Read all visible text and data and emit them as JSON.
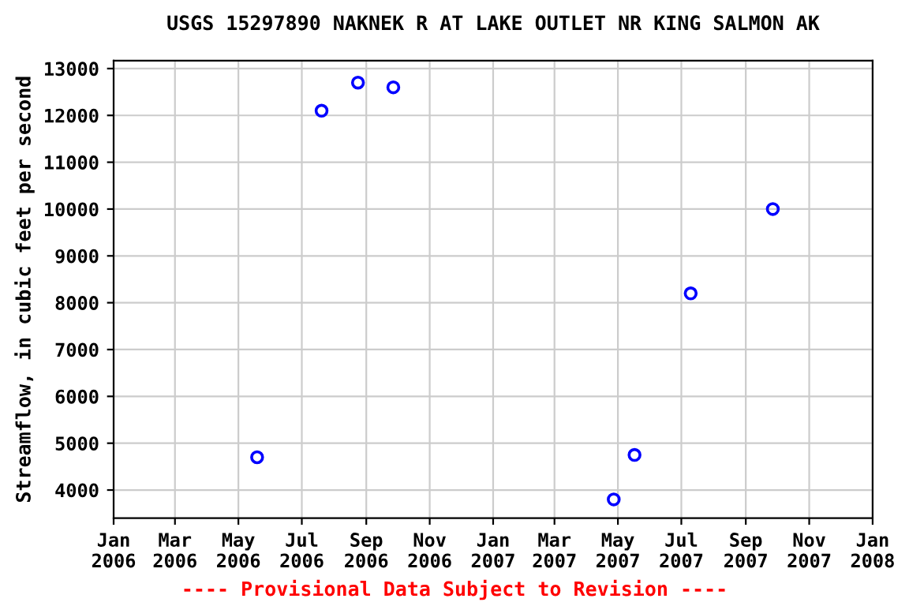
{
  "chart_data": {
    "type": "scatter",
    "title": "USGS 15297890 NAKNEK R AT LAKE OUTLET NR KING SALMON AK",
    "ylabel": "Streamflow, in cubic feet per second",
    "x": [
      "2006-05-19",
      "2006-07-20",
      "2006-08-24",
      "2006-09-27",
      "2007-04-27",
      "2007-05-17",
      "2007-07-10",
      "2007-09-27"
    ],
    "series": [
      {
        "color": "#0000ff",
        "values": [
          4700,
          12100,
          12700,
          12600,
          3800,
          4750,
          8200,
          10000
        ]
      }
    ],
    "marker": "circle",
    "grid": true,
    "xlim": [
      "2006-01-01",
      "2008-01-01"
    ],
    "xticks": [
      {
        "value": "2006-01-01",
        "label": "Jan\n2006"
      },
      {
        "value": "2006-03-01",
        "label": "Mar\n2006"
      },
      {
        "value": "2006-05-01",
        "label": "May\n2006"
      },
      {
        "value": "2006-07-01",
        "label": "Jul\n2006"
      },
      {
        "value": "2006-09-01",
        "label": "Sep\n2006"
      },
      {
        "value": "2006-11-01",
        "label": "Nov\n2006"
      },
      {
        "value": "2007-01-01",
        "label": "Jan\n2007"
      },
      {
        "value": "2007-03-01",
        "label": "Mar\n2007"
      },
      {
        "value": "2007-05-01",
        "label": "May\n2007"
      },
      {
        "value": "2007-07-01",
        "label": "Jul\n2007"
      },
      {
        "value": "2007-09-01",
        "label": "Sep\n2007"
      },
      {
        "value": "2007-11-01",
        "label": "Nov\n2007"
      },
      {
        "value": "2008-01-01",
        "label": "Jan\n2008"
      }
    ],
    "ylim": [
      3400,
      13170
    ],
    "yticks": [
      4000,
      5000,
      6000,
      7000,
      8000,
      9000,
      10000,
      11000,
      12000,
      13000
    ],
    "annotations": [
      "---- Provisional Data Subject to Revision ----"
    ]
  }
}
